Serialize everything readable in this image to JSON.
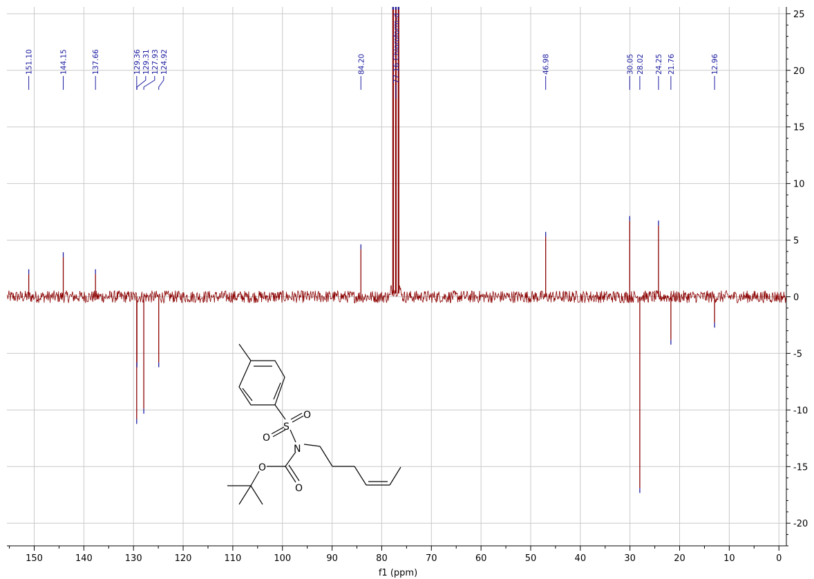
{
  "chart_data": {
    "type": "line",
    "title": "",
    "xlabel": "f1 (ppm)",
    "ylabel": "",
    "xlim": [
      155.5,
      -1.5
    ],
    "ylim": [
      -22,
      25.6
    ],
    "x_reversed": true,
    "grid": true,
    "x_ticks": [
      150,
      140,
      130,
      120,
      110,
      100,
      90,
      80,
      70,
      60,
      50,
      40,
      30,
      20,
      10,
      0
    ],
    "y_ticks": [
      25,
      20,
      15,
      10,
      5,
      0,
      -5,
      -10,
      -15,
      -20
    ],
    "series_color": "#8b0000",
    "integral_color": "#1a1aa0",
    "peaks": [
      {
        "ppm": 151.1,
        "intensity": 2.0,
        "label": "151.10"
      },
      {
        "ppm": 144.15,
        "intensity": 3.5,
        "label": "144.15"
      },
      {
        "ppm": 137.66,
        "intensity": 2.0,
        "label": "137.66"
      },
      {
        "ppm": 129.36,
        "intensity": -10.8,
        "label": "129.36"
      },
      {
        "ppm": 129.31,
        "intensity": -5.8,
        "label": "129.31"
      },
      {
        "ppm": 127.93,
        "intensity": -9.9,
        "label": "127.93"
      },
      {
        "ppm": 124.92,
        "intensity": -5.8,
        "label": "124.92"
      },
      {
        "ppm": 84.2,
        "intensity": 4.2,
        "label": "84.20"
      },
      {
        "ppm": 77.16,
        "intensity": 25.6,
        "label": "77.16 Chloroform-d"
      },
      {
        "ppm": 46.98,
        "intensity": 5.3,
        "label": "46.98"
      },
      {
        "ppm": 30.05,
        "intensity": 6.7,
        "label": "30.05"
      },
      {
        "ppm": 28.02,
        "intensity": -16.9,
        "label": "28.02"
      },
      {
        "ppm": 24.25,
        "intensity": 6.3,
        "label": "24.25"
      },
      {
        "ppm": 21.76,
        "intensity": -3.8,
        "label": "21.76"
      },
      {
        "ppm": 12.96,
        "intensity": -2.3,
        "label": "12.96"
      }
    ],
    "noise_level": 0.55,
    "molecule_atoms": [
      "S",
      "O",
      "O",
      "N",
      "O",
      "O"
    ]
  }
}
